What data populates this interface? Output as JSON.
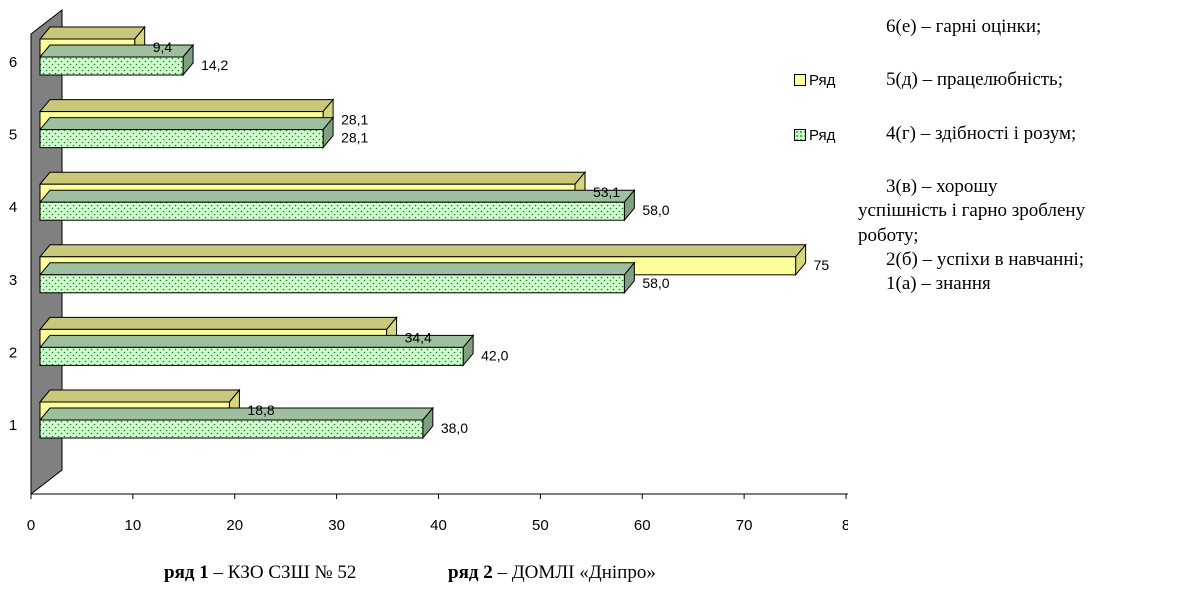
{
  "chart_data": {
    "type": "bar",
    "orientation": "horizontal",
    "style": "3d",
    "categories": [
      "1",
      "2",
      "3",
      "4",
      "5",
      "6"
    ],
    "series": [
      {
        "name": "Ряд",
        "color": "#ffff99",
        "values": [
          18.8,
          34.4,
          75,
          53.1,
          28.1,
          9.4
        ],
        "labels": [
          "18,8",
          "34,4",
          "75",
          "53,1",
          "28,1",
          "9,4"
        ]
      },
      {
        "name": "Ряд",
        "color": "#ccffcc",
        "values": [
          38.0,
          42.0,
          58.0,
          58.0,
          28.1,
          14.2
        ],
        "labels": [
          "38,0",
          "42,0",
          "58,0",
          "58,0",
          "28,1",
          "14,2"
        ]
      }
    ],
    "x_ticks": [
      "0",
      "10",
      "20",
      "30",
      "40",
      "50",
      "60",
      "70",
      "8"
    ],
    "xlim": [
      0,
      80
    ],
    "legend_position": "right"
  },
  "legend": [
    {
      "label": "Ряд"
    },
    {
      "label": "Ряд"
    }
  ],
  "notes": [
    "6(е) – гарні оцінки;",
    "5(д) – працелюбність;",
    "4(г) – здібності і розум;",
    "3(в) – хорошу",
    "успішність і гарно зроблену",
    "роботу;",
    "2(б) – успіхи в навчанні;",
    "1(а) – знання"
  ],
  "footer": {
    "series1_key": "ряд 1",
    "series1_desc": " – КЗО СЗШ № 52",
    "series2_key": "ряд 2",
    "series2_desc": " – ДОМЛІ «Дніпро»"
  }
}
